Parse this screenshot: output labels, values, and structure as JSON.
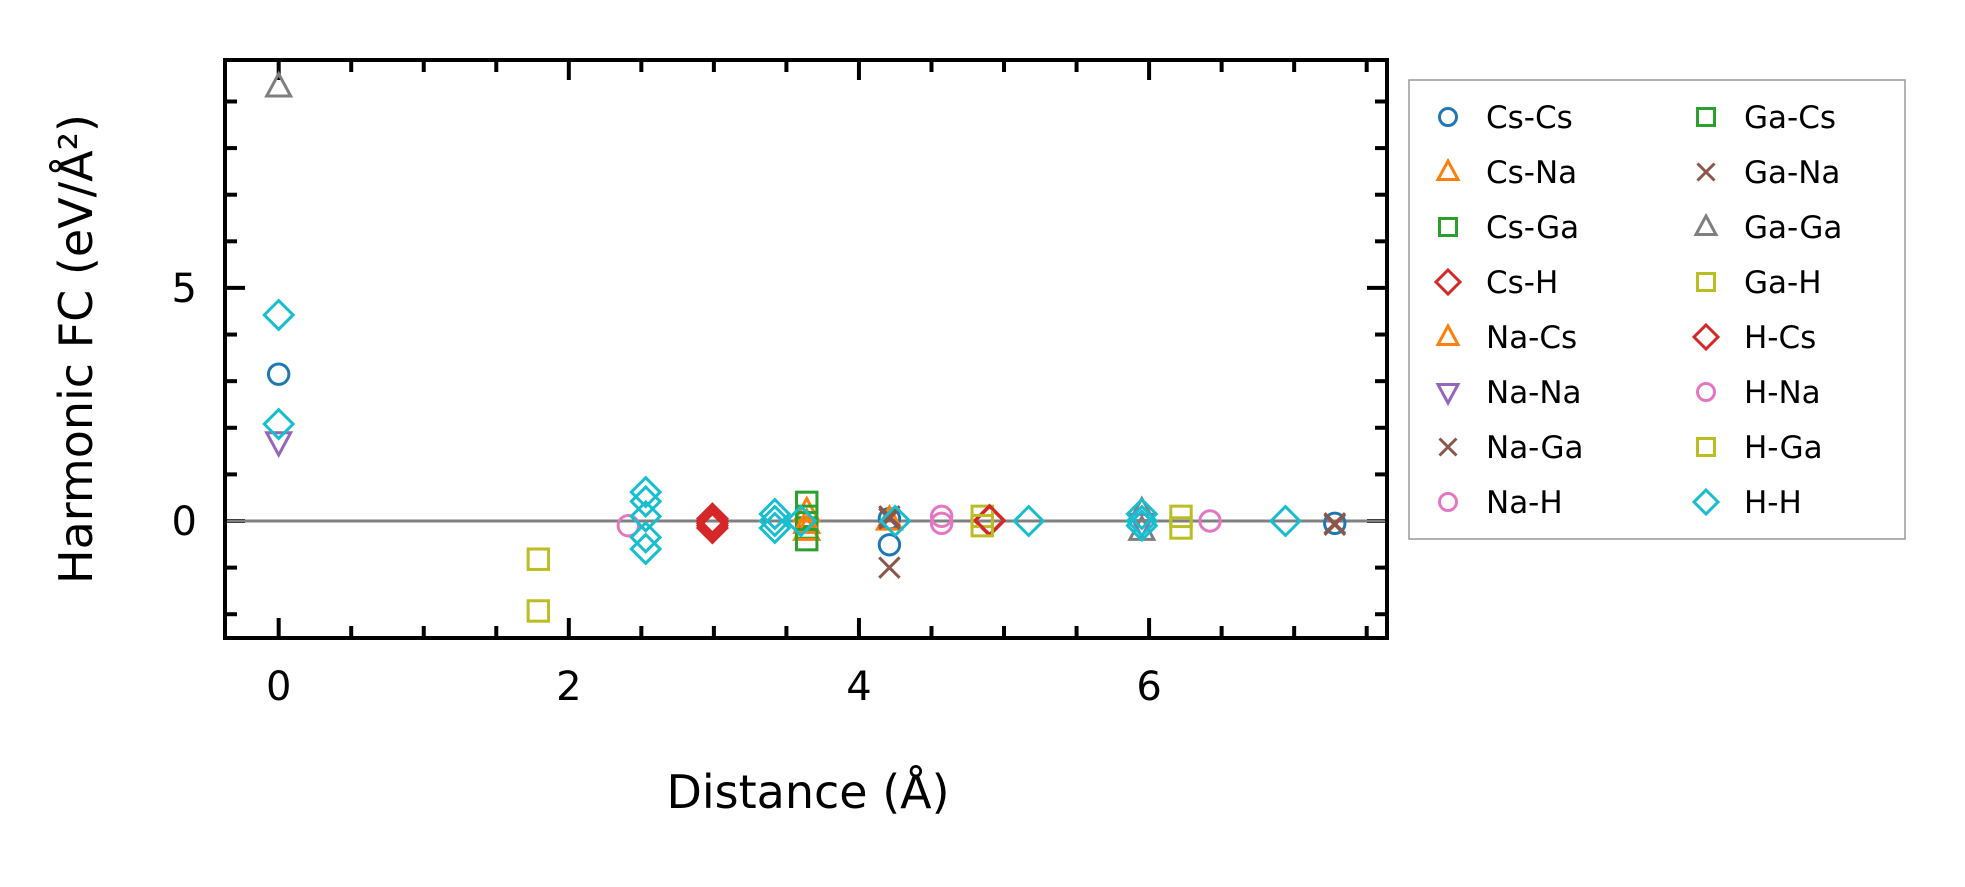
{
  "chart_data": {
    "type": "scatter",
    "title": "",
    "xlabel": "Distance (Å)",
    "ylabel": "Harmonic FC (eV/Å²)",
    "xlim": [
      -0.37,
      7.64
    ],
    "ylim": [
      -2.51,
      9.89
    ],
    "xticks": [
      0,
      2,
      4,
      6
    ],
    "yticks": [
      0,
      5
    ],
    "grid": false,
    "zero_line": true,
    "legend_placement": "outside-right",
    "series": [
      {
        "name": "Cs-Cs",
        "marker": "circle",
        "color": "#1f77b4",
        "points": [
          [
            0,
            3.15
          ],
          [
            4.21,
            0.05
          ],
          [
            4.21,
            -0.51
          ],
          [
            7.28,
            -0.05
          ]
        ]
      },
      {
        "name": "Cs-Na",
        "marker": "triangle-up",
        "color": "#ff7f0e",
        "points": [
          [
            3.64,
            0.2
          ],
          [
            4.21,
            0.02
          ]
        ]
      },
      {
        "name": "Cs-Ga",
        "marker": "square",
        "color": "#2ca02c",
        "points": [
          [
            3.64,
            0.1
          ],
          [
            3.64,
            -0.15
          ]
        ]
      },
      {
        "name": "Cs-H",
        "marker": "diamond",
        "color": "#d62728",
        "points": [
          [
            2.99,
            0.05
          ],
          [
            2.99,
            -0.05
          ],
          [
            2.99,
            -0.15
          ],
          [
            4.9,
            0.0
          ]
        ]
      },
      {
        "name": "Na-Cs",
        "marker": "triangle-up",
        "color": "#ff7f0e",
        "points": [
          [
            3.64,
            -0.2
          ],
          [
            3.64,
            -0.05
          ]
        ]
      },
      {
        "name": "Na-Na",
        "marker": "triangle-down",
        "color": "#9467bd",
        "points": [
          [
            0,
            1.7
          ],
          [
            5.95,
            -0.05
          ]
        ]
      },
      {
        "name": "Na-Ga",
        "marker": "x",
        "color": "#8c564b",
        "points": [
          [
            4.21,
            0.1
          ],
          [
            7.28,
            -0.05
          ]
        ]
      },
      {
        "name": "Na-H",
        "marker": "circle",
        "color": "#e377c2",
        "points": [
          [
            2.41,
            -0.1
          ],
          [
            4.57,
            0.1
          ]
        ]
      },
      {
        "name": "Ga-Cs",
        "marker": "square",
        "color": "#2ca02c",
        "points": [
          [
            3.64,
            0.4
          ],
          [
            3.64,
            -0.4
          ]
        ]
      },
      {
        "name": "Ga-Na",
        "marker": "x",
        "color": "#8c564b",
        "points": [
          [
            4.21,
            -1.0
          ],
          [
            4.21,
            0.05
          ],
          [
            7.28,
            -0.08
          ]
        ]
      },
      {
        "name": "Ga-Ga",
        "marker": "triangle-up",
        "color": "#7f7f7f",
        "points": [
          [
            0,
            9.31
          ],
          [
            5.95,
            0.2
          ],
          [
            5.95,
            -0.2
          ]
        ]
      },
      {
        "name": "Ga-H",
        "marker": "square",
        "color": "#bcbd22",
        "points": [
          [
            1.79,
            -0.82
          ],
          [
            1.79,
            -1.93
          ],
          [
            4.85,
            0.1
          ],
          [
            6.22,
            0.1
          ]
        ]
      },
      {
        "name": "H-Cs",
        "marker": "diamond",
        "color": "#d62728",
        "points": [
          [
            2.99,
            0.0
          ],
          [
            2.99,
            -0.1
          ],
          [
            4.9,
            0.02
          ]
        ]
      },
      {
        "name": "H-Na",
        "marker": "circle",
        "color": "#e377c2",
        "points": [
          [
            4.57,
            -0.05
          ],
          [
            6.42,
            0.0
          ]
        ]
      },
      {
        "name": "H-Ga",
        "marker": "square",
        "color": "#bcbd22",
        "points": [
          [
            4.85,
            -0.1
          ],
          [
            6.22,
            -0.15
          ]
        ]
      },
      {
        "name": "H-H",
        "marker": "diamond",
        "color": "#17becf",
        "points": [
          [
            0,
            4.42
          ],
          [
            0,
            2.08
          ],
          [
            2.53,
            0.62
          ],
          [
            2.53,
            0.42
          ],
          [
            2.53,
            0.1
          ],
          [
            2.53,
            -0.35
          ],
          [
            2.53,
            -0.6
          ],
          [
            3.42,
            0.15
          ],
          [
            3.42,
            0.0
          ],
          [
            3.42,
            -0.15
          ],
          [
            3.6,
            0.0
          ],
          [
            4.25,
            0.0
          ],
          [
            5.17,
            0.0
          ],
          [
            5.95,
            0.15
          ],
          [
            5.95,
            0.0
          ],
          [
            5.95,
            -0.1
          ],
          [
            6.94,
            0.0
          ]
        ]
      }
    ]
  }
}
